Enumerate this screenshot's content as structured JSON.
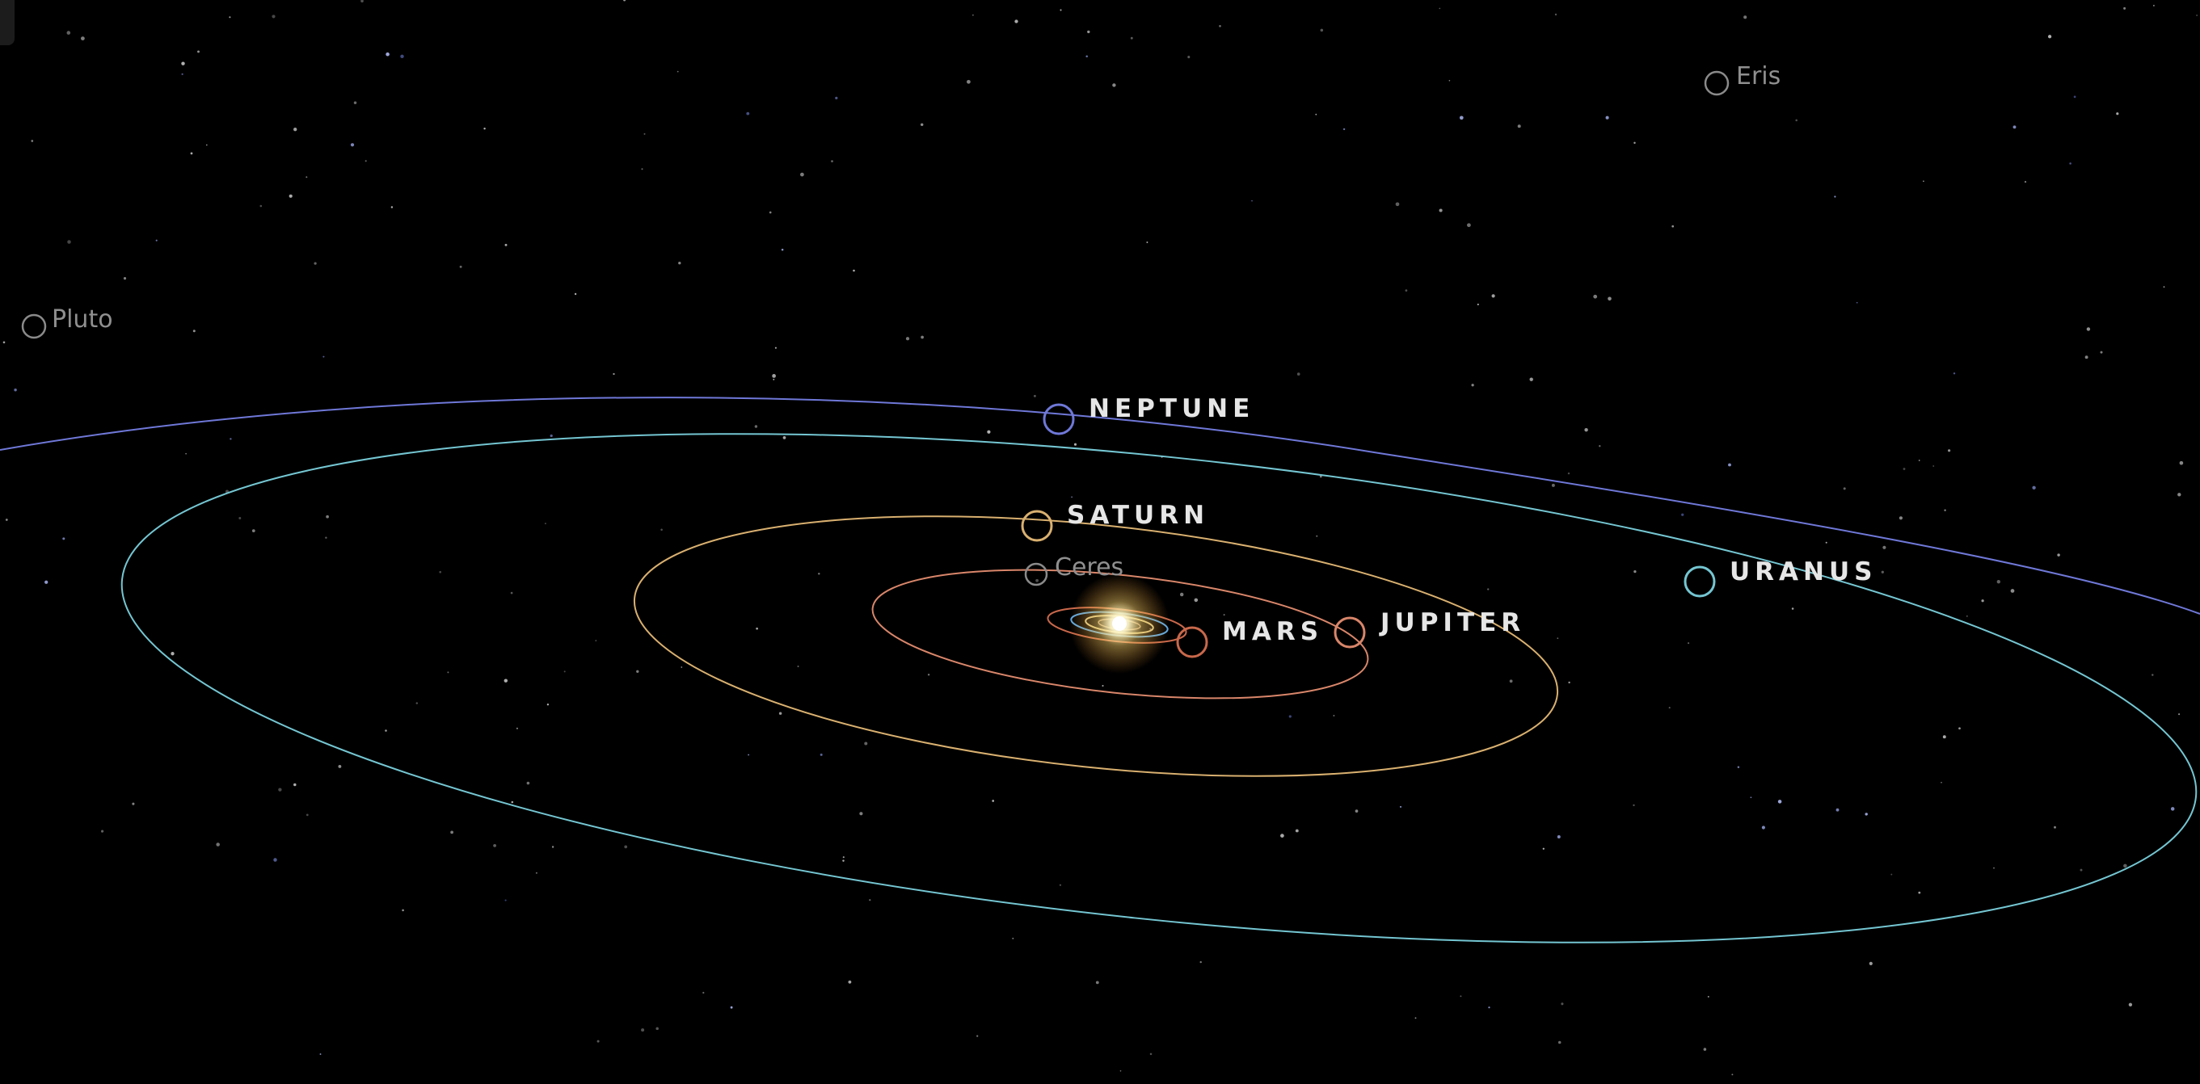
{
  "planets": {
    "neptune": {
      "label": "NEPTUNE",
      "color": "#6f78d8"
    },
    "saturn": {
      "label": "SATURN",
      "color": "#d9b06f"
    },
    "uranus": {
      "label": "URANUS",
      "color": "#74c6d2"
    },
    "jupiter": {
      "label": "JUPITER",
      "color": "#d9866a"
    },
    "mars": {
      "label": "MARS",
      "color": "#c9684b"
    }
  },
  "dwarf_planets": {
    "pluto": {
      "label": "Pluto",
      "color": "#8a8a8a"
    },
    "eris": {
      "label": "Eris",
      "color": "#8a8a8a"
    },
    "ceres": {
      "label": "Ceres",
      "color": "#8a8a8a"
    }
  },
  "sun": {
    "color": "#fff3c0"
  },
  "background": {
    "color": "#000000"
  }
}
